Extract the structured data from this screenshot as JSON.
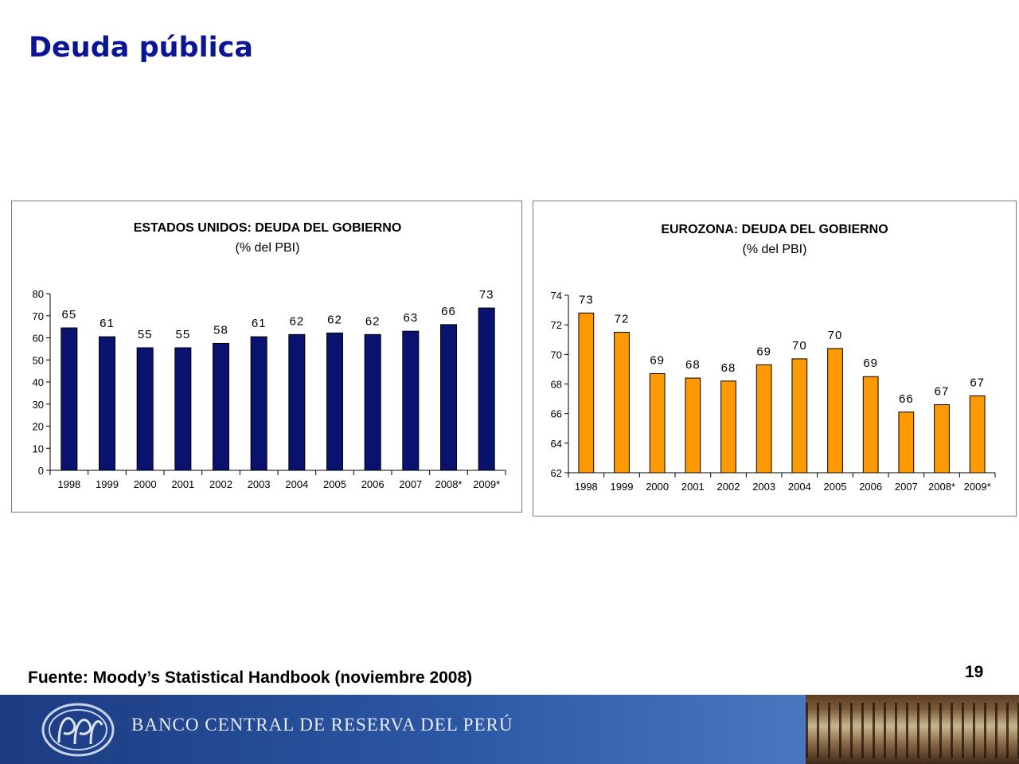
{
  "title": "Deuda pública",
  "source": "Fuente: Moody’s Statistical Handbook (noviembre 2008)",
  "page_number": "19",
  "footer": {
    "bank_name": "BANCO CENTRAL DE RESERVA DEL PERÚ"
  },
  "chart_data": [
    {
      "type": "bar",
      "title": "ESTADOS UNIDOS: DEUDA DEL GOBIERNO",
      "subtitle": "(% del PBI)",
      "categories": [
        "1998",
        "1999",
        "2000",
        "2001",
        "2002",
        "2003",
        "2004",
        "2005",
        "2006",
        "2007",
        "2008*",
        "2009*"
      ],
      "values": [
        64.5,
        60.5,
        55.5,
        55.5,
        57.5,
        60.5,
        61.5,
        62.2,
        61.5,
        63,
        66,
        73.5
      ],
      "value_labels": [
        "65",
        "61",
        "55",
        "55",
        "58",
        "61",
        "62",
        "62",
        "62",
        "63",
        "66",
        "73"
      ],
      "ylim": [
        0,
        80
      ],
      "yticks": [
        0,
        10,
        20,
        30,
        40,
        50,
        60,
        70,
        80
      ],
      "color": "#0a1270",
      "grid": false
    },
    {
      "type": "bar",
      "title": "EUROZONA: DEUDA DEL GOBIERNO",
      "subtitle": "(% del PBI)",
      "categories": [
        "1998",
        "1999",
        "2000",
        "2001",
        "2002",
        "2003",
        "2004",
        "2005",
        "2006",
        "2007",
        "2008*",
        "2009*"
      ],
      "values": [
        72.8,
        71.5,
        68.7,
        68.4,
        68.2,
        69.3,
        69.7,
        70.4,
        68.5,
        66.1,
        66.6,
        67.2
      ],
      "value_labels": [
        "73",
        "72",
        "69",
        "68",
        "68",
        "69",
        "70",
        "70",
        "69",
        "66",
        "67",
        "67"
      ],
      "ylim": [
        62,
        74
      ],
      "yticks": [
        62,
        64,
        66,
        68,
        70,
        72,
        74
      ],
      "color": "#ff9900",
      "grid": false
    }
  ]
}
